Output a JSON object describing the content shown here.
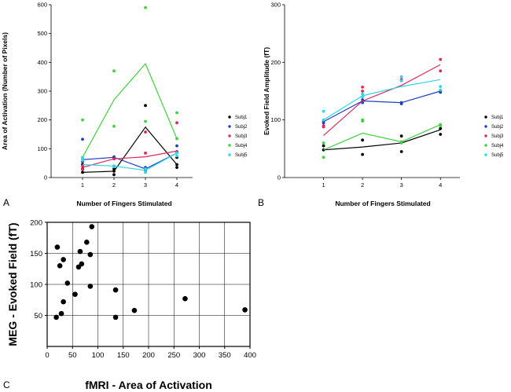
{
  "colors": {
    "Subj1": "#000000",
    "Subj2": "#1f3fbf",
    "Subj3": "#e0285a",
    "Subj4": "#3fd23f",
    "Subj5": "#2fd6e6"
  },
  "chart_data": [
    {
      "panel": "A",
      "type": "line",
      "xlabel": "Number of Fingers Stimulated",
      "ylabel": "Area of Activation (Number of Pixels)",
      "x": [
        1,
        2,
        3,
        4
      ],
      "xlim": [
        0,
        4.5
      ],
      "ylim": [
        0,
        600
      ],
      "yticks": [
        0,
        100,
        200,
        300,
        400,
        500,
        600
      ],
      "xticks": [
        1,
        2,
        3,
        4
      ],
      "legend": [
        "Subj1",
        "Subj2",
        "Subj3",
        "Subj4",
        "Subj5"
      ],
      "series": [
        {
          "name": "Subj1",
          "line": [
            18,
            22,
            175,
            45
          ],
          "points": [
            [
              1,
              18
            ],
            [
              1,
              30
            ],
            [
              1,
              45
            ],
            [
              2,
              22
            ],
            [
              2,
              30
            ],
            [
              2,
              10
            ],
            [
              3,
              250
            ],
            [
              3,
              30
            ],
            [
              4,
              45
            ],
            [
              4,
              35
            ],
            [
              4,
              70
            ]
          ]
        },
        {
          "name": "Subj2",
          "line": [
            62,
            70,
            30,
            85
          ],
          "points": [
            [
              1,
              133
            ],
            [
              1,
              55
            ],
            [
              2,
              72
            ],
            [
              2,
              65
            ],
            [
              3,
              25
            ],
            [
              3,
              35
            ],
            [
              4,
              110
            ],
            [
              4,
              90
            ]
          ]
        },
        {
          "name": "Subj3",
          "line": [
            35,
            65,
            72,
            92
          ],
          "points": [
            [
              1,
              40
            ],
            [
              1,
              28
            ],
            [
              2,
              65
            ],
            [
              2,
              40
            ],
            [
              3,
              158
            ],
            [
              3,
              85
            ],
            [
              4,
              190
            ],
            [
              4,
              88
            ]
          ]
        },
        {
          "name": "Subj4",
          "line": [
            70,
            270,
            395,
            135
          ],
          "points": [
            [
              1,
              200
            ],
            [
              1,
              65
            ],
            [
              2,
              370
            ],
            [
              2,
              178
            ],
            [
              3,
              590
            ],
            [
              3,
              195
            ],
            [
              4,
              225
            ],
            [
              4,
              135
            ]
          ]
        },
        {
          "name": "Subj5",
          "line": [
            45,
            40,
            25,
            85
          ],
          "points": [
            [
              1,
              70
            ],
            [
              1,
              60
            ],
            [
              2,
              40
            ],
            [
              2,
              38
            ],
            [
              3,
              18
            ],
            [
              3,
              30
            ],
            [
              4,
              85
            ],
            [
              4,
              75
            ]
          ]
        }
      ]
    },
    {
      "panel": "B",
      "type": "line",
      "xlabel": "Number of Fingers Stimulated",
      "ylabel": "Evoked Field Amplitude (fT)",
      "x": [
        1,
        2,
        3,
        4
      ],
      "xlim": [
        0,
        4.5
      ],
      "ylim": [
        0,
        300
      ],
      "yticks": [
        0,
        100,
        200,
        300
      ],
      "xticks": [
        1,
        2,
        3,
        4
      ],
      "legend": [
        "Subj1",
        "Subj2",
        "Subj3",
        "Subj4",
        "Subj5"
      ],
      "series": [
        {
          "name": "Subj1",
          "line": [
            48,
            53,
            60,
            83
          ],
          "points": [
            [
              1,
              48
            ],
            [
              1,
              55
            ],
            [
              2,
              40
            ],
            [
              2,
              65
            ],
            [
              3,
              45
            ],
            [
              3,
              72
            ],
            [
              4,
              75
            ],
            [
              4,
              85
            ]
          ]
        },
        {
          "name": "Subj2",
          "line": [
            97,
            133,
            130,
            150
          ],
          "points": [
            [
              1,
              98
            ],
            [
              1,
              95
            ],
            [
              2,
              135
            ],
            [
              2,
              130
            ],
            [
              3,
              130
            ],
            [
              3,
              128
            ],
            [
              4,
              148
            ],
            [
              4,
              150
            ]
          ]
        },
        {
          "name": "Subj3",
          "line": [
            73,
            133,
            160,
            196
          ],
          "points": [
            [
              1,
              90
            ],
            [
              1,
              88
            ],
            [
              2,
              157
            ],
            [
              2,
              150
            ],
            [
              3,
              168
            ],
            [
              3,
              170
            ],
            [
              4,
              205
            ],
            [
              4,
              185
            ]
          ]
        },
        {
          "name": "Subj4",
          "line": [
            48,
            77,
            62,
            92
          ],
          "points": [
            [
              1,
              35
            ],
            [
              1,
              60
            ],
            [
              2,
              98
            ],
            [
              2,
              100
            ],
            [
              3,
              62
            ],
            [
              3,
              60
            ],
            [
              4,
              90
            ],
            [
              4,
              92
            ]
          ]
        },
        {
          "name": "Subj5",
          "line": [
            100,
            142,
            158,
            170
          ],
          "points": [
            [
              1,
              115
            ],
            [
              1,
              100
            ],
            [
              2,
              145
            ],
            [
              2,
              140
            ],
            [
              3,
              175
            ],
            [
              3,
              168
            ],
            [
              4,
              158
            ],
            [
              4,
              152
            ]
          ]
        }
      ]
    },
    {
      "panel": "C",
      "type": "scatter",
      "xlabel": "fMRI - Area of Activation",
      "ylabel": "MEG - Evoked Field (fT)",
      "xlim": [
        0,
        400
      ],
      "ylim": [
        0,
        200
      ],
      "xticks": [
        0,
        50,
        100,
        150,
        200,
        250,
        300,
        350,
        400
      ],
      "yticks": [
        50,
        100,
        150,
        200
      ],
      "grid": true,
      "points": [
        [
          18,
          47
        ],
        [
          20,
          160
        ],
        [
          25,
          130
        ],
        [
          28,
          53
        ],
        [
          32,
          72
        ],
        [
          32,
          140
        ],
        [
          40,
          102
        ],
        [
          55,
          84
        ],
        [
          62,
          128
        ],
        [
          65,
          153
        ],
        [
          68,
          133
        ],
        [
          78,
          168
        ],
        [
          85,
          148
        ],
        [
          85,
          97
        ],
        [
          88,
          193
        ],
        [
          135,
          47
        ],
        [
          135,
          91
        ],
        [
          172,
          58
        ],
        [
          272,
          77
        ],
        [
          390,
          59
        ]
      ]
    }
  ]
}
